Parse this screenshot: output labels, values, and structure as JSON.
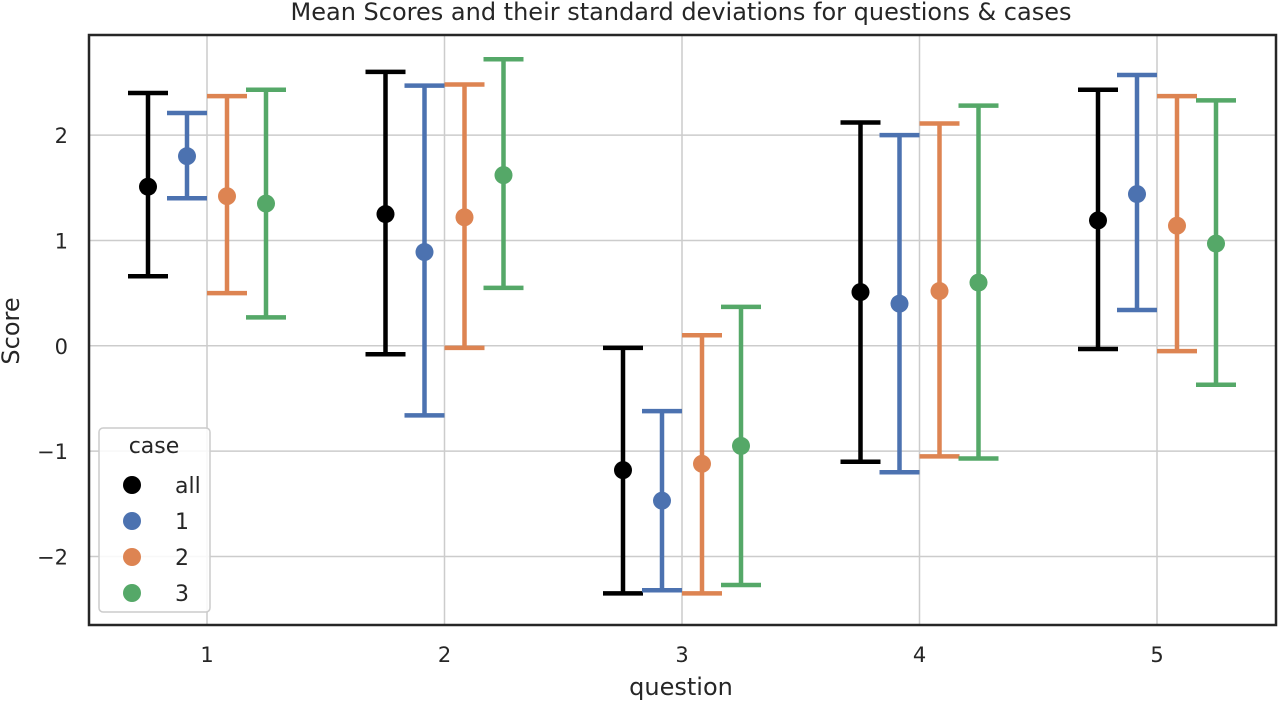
{
  "chart_data": {
    "type": "scatter",
    "title": "Mean Scores and their standard deviations for questions & cases",
    "xlabel": "question",
    "ylabel": "Score",
    "categories": [
      "1",
      "2",
      "3",
      "4",
      "5"
    ],
    "ylim": [
      -2.65,
      2.95
    ],
    "yticks": [
      -2,
      -1,
      0,
      1,
      2
    ],
    "ytick_labels": [
      "−2",
      "−1",
      "0",
      "1",
      "2"
    ],
    "grid": true,
    "legend": {
      "title": "case",
      "placement": "lower-left"
    },
    "series": [
      {
        "name": "all",
        "color": "#000000",
        "mean": [
          1.51,
          1.25,
          -1.18,
          0.51,
          1.19
        ],
        "lower": [
          0.66,
          -0.08,
          -2.35,
          -1.1,
          -0.03
        ],
        "upper": [
          2.4,
          2.6,
          -0.02,
          2.12,
          2.43
        ]
      },
      {
        "name": "1",
        "color": "#4c72b0",
        "mean": [
          1.8,
          0.89,
          -1.47,
          0.4,
          1.44
        ],
        "lower": [
          1.4,
          -0.66,
          -2.32,
          -1.2,
          0.34
        ],
        "upper": [
          2.21,
          2.47,
          -0.62,
          2.0,
          2.57
        ]
      },
      {
        "name": "2",
        "color": "#dd8452",
        "mean": [
          1.42,
          1.22,
          -1.12,
          0.52,
          1.14
        ],
        "lower": [
          0.5,
          -0.02,
          -2.35,
          -1.05,
          -0.05
        ],
        "upper": [
          2.37,
          2.48,
          0.1,
          2.11,
          2.37
        ]
      },
      {
        "name": "3",
        "color": "#55a868",
        "mean": [
          1.35,
          1.62,
          -0.95,
          0.6,
          0.97
        ],
        "lower": [
          0.27,
          0.55,
          -2.27,
          -1.07,
          -0.37
        ],
        "upper": [
          2.43,
          2.72,
          0.37,
          2.28,
          2.33
        ]
      }
    ]
  }
}
